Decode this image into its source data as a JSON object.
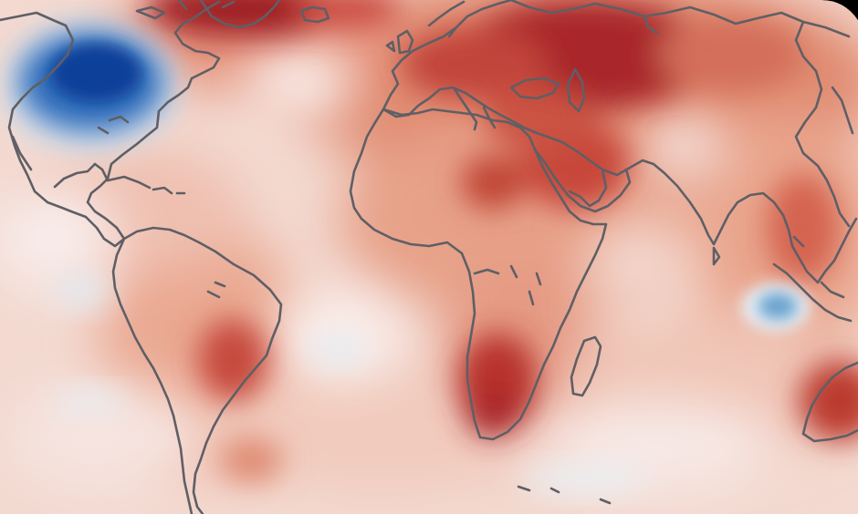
{
  "map": {
    "type": "temperature-anomaly-map",
    "projection": "robinson-like",
    "colors": {
      "background": "#000000",
      "ocean_base": "#f3d9d0",
      "land_base": "#e7b09a",
      "coastline": "#5f5f65",
      "warm_strong": "#9a1c1c",
      "warm": "#cf4a3a",
      "warm_light": "#e69a84",
      "neutral": "#f7ecea",
      "cool_light": "#d7e6f1",
      "cool": "#3d7fc4",
      "cool_strong": "#0b3e9a"
    },
    "anomaly_regions": [
      {
        "name": "north-america-cold-anomaly",
        "polarity": "cold",
        "intensity": 1.0
      },
      {
        "name": "eastern-europe-warm-anomaly",
        "polarity": "warm",
        "intensity": 1.0
      },
      {
        "name": "arctic-warm-anomaly",
        "polarity": "warm",
        "intensity": 0.95
      },
      {
        "name": "southern-africa-warm-anomaly",
        "polarity": "warm",
        "intensity": 0.9
      },
      {
        "name": "middle-east-warm-anomaly",
        "polarity": "warm",
        "intensity": 0.85
      },
      {
        "name": "australia-warm-anomaly",
        "polarity": "warm",
        "intensity": 0.85
      },
      {
        "name": "central-brazil-warm-anomaly",
        "polarity": "warm",
        "intensity": 0.75
      },
      {
        "name": "sahara-warm-anomaly",
        "polarity": "warm",
        "intensity": 0.7
      },
      {
        "name": "indian-ocean-cold-anomaly",
        "polarity": "cold",
        "intensity": 0.6
      },
      {
        "name": "south-atlantic-cool-anomaly",
        "polarity": "cold",
        "intensity": 0.3
      }
    ]
  }
}
